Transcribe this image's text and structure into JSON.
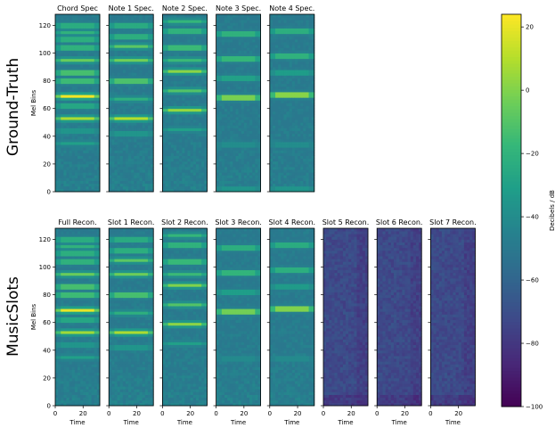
{
  "chart_data": {
    "type": "heatmap",
    "rows": [
      {
        "row_label": "Ground-Truth",
        "panels": [
          {
            "title": "Chord Spec",
            "bands": [
              {
                "bin": 69,
                "db": 22
              },
              {
                "bin": 53,
                "db": 8
              },
              {
                "bin": 86,
                "db": 0
              },
              {
                "bin": 95,
                "db": -5
              },
              {
                "bin": 80,
                "db": -3
              },
              {
                "bin": 104,
                "db": -10
              },
              {
                "bin": 110,
                "db": -12
              },
              {
                "bin": 120,
                "db": -14
              },
              {
                "bin": 62,
                "db": -18
              },
              {
                "bin": 115,
                "db": -20
              },
              {
                "bin": 35,
                "db": -30
              },
              {
                "bin": 44,
                "db": -30
              }
            ]
          },
          {
            "title": "Note 1 Spec.",
            "bands": [
              {
                "bin": 53,
                "db": 10
              },
              {
                "bin": 80,
                "db": 2
              },
              {
                "bin": 95,
                "db": -3
              },
              {
                "bin": 105,
                "db": -8
              },
              {
                "bin": 112,
                "db": -12
              },
              {
                "bin": 120,
                "db": -15
              },
              {
                "bin": 67,
                "db": -22
              },
              {
                "bin": 42,
                "db": -30
              }
            ]
          },
          {
            "title": "Note 2 Spec.",
            "bands": [
              {
                "bin": 59,
                "db": 4
              },
              {
                "bin": 87,
                "db": 2
              },
              {
                "bin": 104,
                "db": -4
              },
              {
                "bin": 73,
                "db": -10
              },
              {
                "bin": 116,
                "db": -10
              },
              {
                "bin": 95,
                "db": -16
              },
              {
                "bin": 123,
                "db": -18
              },
              {
                "bin": 45,
                "db": -30
              }
            ]
          },
          {
            "title": "Note 3 Spec.",
            "bands": [
              {
                "bin": 68,
                "db": 16
              },
              {
                "bin": 96,
                "db": -6
              },
              {
                "bin": 114,
                "db": -10
              },
              {
                "bin": 82,
                "db": -22
              },
              {
                "bin": 2,
                "db": -30
              },
              {
                "bin": 34,
                "db": -36
              }
            ]
          },
          {
            "title": "Note 4 Spec.",
            "bands": [
              {
                "bin": 70,
                "db": 20
              },
              {
                "bin": 98,
                "db": -10
              },
              {
                "bin": 116,
                "db": -12
              },
              {
                "bin": 86,
                "db": -25
              },
              {
                "bin": 2,
                "db": -30
              },
              {
                "bin": 34,
                "db": -36
              }
            ]
          }
        ]
      },
      {
        "row_label": "MusicSlots",
        "panels": [
          {
            "title": "Full Recon.",
            "bands": [
              {
                "bin": 69,
                "db": 20
              },
              {
                "bin": 53,
                "db": 6
              },
              {
                "bin": 86,
                "db": 0
              },
              {
                "bin": 95,
                "db": -5
              },
              {
                "bin": 80,
                "db": -3
              },
              {
                "bin": 104,
                "db": -10
              },
              {
                "bin": 110,
                "db": -12
              },
              {
                "bin": 120,
                "db": -14
              },
              {
                "bin": 62,
                "db": -18
              },
              {
                "bin": 115,
                "db": -20
              },
              {
                "bin": 35,
                "db": -30
              },
              {
                "bin": 44,
                "db": -30
              }
            ]
          },
          {
            "title": "Slot 1 Recon.",
            "bands": [
              {
                "bin": 53,
                "db": 8
              },
              {
                "bin": 80,
                "db": 0
              },
              {
                "bin": 95,
                "db": -4
              },
              {
                "bin": 105,
                "db": -8
              },
              {
                "bin": 112,
                "db": -12
              },
              {
                "bin": 120,
                "db": -15
              },
              {
                "bin": 67,
                "db": -22
              },
              {
                "bin": 42,
                "db": -30
              }
            ]
          },
          {
            "title": "Slot 2 Recon.",
            "bands": [
              {
                "bin": 59,
                "db": 2
              },
              {
                "bin": 87,
                "db": 0
              },
              {
                "bin": 104,
                "db": -5
              },
              {
                "bin": 73,
                "db": -10
              },
              {
                "bin": 116,
                "db": -10
              },
              {
                "bin": 95,
                "db": -16
              },
              {
                "bin": 123,
                "db": -18
              },
              {
                "bin": 45,
                "db": -30
              }
            ]
          },
          {
            "title": "Slot 3 Recon.",
            "bands": [
              {
                "bin": 68,
                "db": 14
              },
              {
                "bin": 96,
                "db": -8
              },
              {
                "bin": 114,
                "db": -12
              },
              {
                "bin": 82,
                "db": -24
              },
              {
                "bin": 34,
                "db": -38
              }
            ]
          },
          {
            "title": "Slot 4 Recon.",
            "bands": [
              {
                "bin": 70,
                "db": 18
              },
              {
                "bin": 98,
                "db": -12
              },
              {
                "bin": 116,
                "db": -14
              },
              {
                "bin": 86,
                "db": -26
              },
              {
                "bin": 34,
                "db": -38
              }
            ]
          },
          {
            "title": "Slot 5 Recon.",
            "background_db": -72,
            "bands": []
          },
          {
            "title": "Slot 6 Recon.",
            "background_db": -72,
            "bands": []
          },
          {
            "title": "Slot 7 Recon.",
            "background_db": -72,
            "bands": []
          }
        ]
      }
    ],
    "xlabel": "Time",
    "ylabel": "Mel Bins",
    "xlim": [
      0,
      32
    ],
    "ylim": [
      0,
      128
    ],
    "xticks": [
      0,
      20
    ],
    "yticks": [
      0,
      20,
      40,
      60,
      80,
      100,
      120
    ],
    "colorbar": {
      "label": "Decibels / dB",
      "range": [
        -100,
        24
      ],
      "ticks": [
        20,
        0,
        -20,
        -40,
        -60,
        -80,
        -100
      ],
      "tick_labels": [
        "20",
        "0",
        "−20",
        "−40",
        "−60",
        "−80",
        "−100"
      ],
      "colormap": [
        "#440154",
        "#482878",
        "#3e4989",
        "#31688e",
        "#26828e",
        "#1f9e89",
        "#35b779",
        "#6ece58",
        "#b5de2b",
        "#fde725"
      ]
    }
  }
}
